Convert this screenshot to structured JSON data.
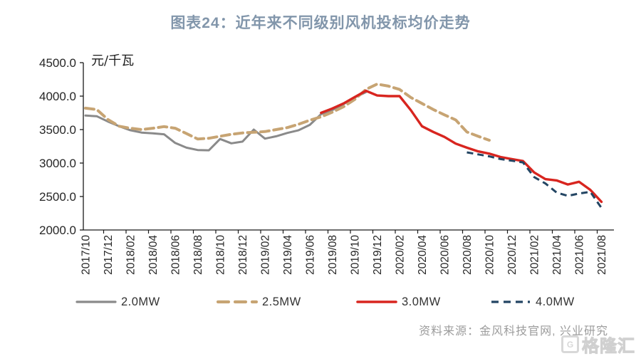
{
  "header": {
    "title": "图表24：近年来不同级别风机投标均价走势"
  },
  "chart_data": {
    "type": "line",
    "title": "图表24：近年来不同级别风机投标均价走势",
    "unit_label": "元/千瓦",
    "ylim": [
      2000,
      4500
    ],
    "y_tick_labels": [
      "2000.0",
      "2500.0",
      "3000.0",
      "3500.0",
      "4000.0",
      "4500.0"
    ],
    "x_tick_labels": [
      "2017/10",
      "2017/12",
      "2018/02",
      "2018/04",
      "2018/06",
      "2018/08",
      "2018/10",
      "2018/12",
      "2019/02",
      "2019/04",
      "2019/06",
      "2019/08",
      "2019/10",
      "2019/12",
      "2020/02",
      "2020/04",
      "2020/06",
      "2020/08",
      "2020/10",
      "2020/12",
      "2021/02",
      "2021/04",
      "2021/06",
      "2021/08"
    ],
    "categories": [
      "2017/10",
      "2017/11",
      "2017/12",
      "2018/01",
      "2018/02",
      "2018/03",
      "2018/04",
      "2018/05",
      "2018/06",
      "2018/07",
      "2018/08",
      "2018/09",
      "2018/10",
      "2018/11",
      "2018/12",
      "2019/01",
      "2019/02",
      "2019/03",
      "2019/04",
      "2019/05",
      "2019/06",
      "2019/07",
      "2019/08",
      "2019/09",
      "2019/10",
      "2019/11",
      "2019/12",
      "2020/01",
      "2020/02",
      "2020/03",
      "2020/04",
      "2020/05",
      "2020/06",
      "2020/07",
      "2020/08",
      "2020/09",
      "2020/10",
      "2020/11",
      "2020/12",
      "2021/01",
      "2021/02",
      "2021/03",
      "2021/04",
      "2021/05",
      "2021/06",
      "2021/07",
      "2021/08"
    ],
    "grid": false,
    "legend_position": "bottom",
    "series": [
      {
        "name": "2.0MW",
        "color": "#8A8A8A",
        "style": "solid",
        "values": [
          3710,
          3700,
          3620,
          3550,
          3490,
          3455,
          3445,
          3430,
          3300,
          3230,
          3195,
          3190,
          3360,
          3295,
          3320,
          3500,
          3365,
          3400,
          3450,
          3490,
          3570,
          3730,
          3790,
          3880,
          3980,
          4060,
          null,
          null,
          null,
          null,
          null,
          null,
          null,
          null,
          null,
          null,
          null,
          null,
          null,
          null,
          null,
          null,
          null,
          null,
          null,
          null,
          null
        ]
      },
      {
        "name": "2.5MW",
        "color": "#C7A473",
        "style": "dashed",
        "values": [
          3820,
          3800,
          3650,
          3550,
          3520,
          3500,
          3520,
          3545,
          3520,
          3440,
          3360,
          3370,
          3400,
          3430,
          3450,
          3460,
          3470,
          3500,
          3530,
          3580,
          3640,
          3690,
          3760,
          3840,
          3950,
          4100,
          4180,
          4150,
          4100,
          3980,
          3890,
          3800,
          3720,
          3645,
          3465,
          3400,
          3340,
          null,
          null,
          null,
          null,
          null,
          null,
          null,
          null,
          null,
          null
        ]
      },
      {
        "name": "3.0MW",
        "color": "#D8251F",
        "style": "solid",
        "values": [
          null,
          null,
          null,
          null,
          null,
          null,
          null,
          null,
          null,
          null,
          null,
          null,
          null,
          null,
          null,
          null,
          null,
          null,
          null,
          null,
          null,
          3750,
          3815,
          3890,
          3985,
          4080,
          4010,
          4000,
          4000,
          3790,
          3550,
          3465,
          3390,
          3290,
          3230,
          3175,
          3140,
          3090,
          3060,
          3030,
          2860,
          2760,
          2740,
          2680,
          2720,
          2600,
          2420
        ]
      },
      {
        "name": "4.0MW",
        "color": "#234563",
        "style": "dashed",
        "values": [
          null,
          null,
          null,
          null,
          null,
          null,
          null,
          null,
          null,
          null,
          null,
          null,
          null,
          null,
          null,
          null,
          null,
          null,
          null,
          null,
          null,
          null,
          null,
          null,
          null,
          null,
          null,
          null,
          null,
          null,
          null,
          null,
          null,
          null,
          3160,
          3130,
          3100,
          3060,
          3035,
          3010,
          2790,
          2695,
          2560,
          2510,
          2545,
          2570,
          2330
        ]
      }
    ]
  },
  "footer": {
    "source": "资料来源：金风科技官网, 兴业研究"
  },
  "watermark": {
    "logo_letter": "G",
    "text": "格隆汇"
  }
}
